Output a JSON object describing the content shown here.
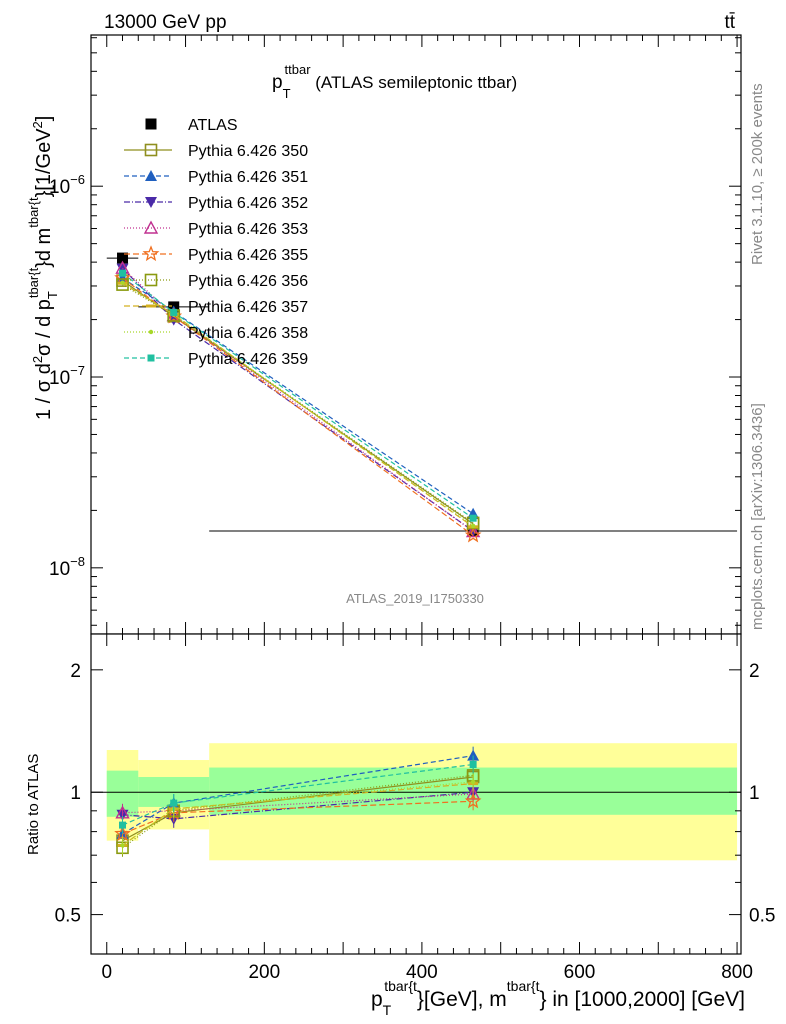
{
  "header": {
    "left": "13000 GeV pp",
    "right": "tt̄"
  },
  "side_labels": {
    "rivet": "Rivet 3.1.10, ≥ 200k events",
    "mcplots": "mcplots.cern.ch [arXiv:1306.3436]"
  },
  "watermark": "ATLAS_2019_I1750330",
  "chart_data": [
    {
      "type": "line",
      "title_main": "p",
      "title_sub": "T",
      "title_sup": "ttbar",
      "title_rest": " (ATLAS semileptonic ttbar)",
      "title": "p_T^ttbar (ATLAS semileptonic ttbar)",
      "ylabel": "1 / σ d²σ / d p_T^{tbar{t}} d m^{tbar{t}} [1/GeV²]",
      "yscale": "log",
      "ylim": [
        4.5e-09,
        6.2e-06
      ],
      "xlim": [
        -20,
        805
      ],
      "y_ticks": [
        {
          "value": 1e-06,
          "label": "10",
          "exp": "−6"
        },
        {
          "value": 1e-07,
          "label": "10",
          "exp": "−7"
        },
        {
          "value": 1e-08,
          "label": "10",
          "exp": "−8"
        }
      ],
      "x": [
        20,
        85,
        465
      ],
      "bin_edges": [
        0,
        40,
        130,
        800
      ],
      "series": [
        {
          "name": "ATLAS",
          "color": "#000000",
          "marker": "square-filled",
          "dash": "none",
          "values": [
            4.2e-07,
            2.33e-07,
            1.56e-08
          ]
        },
        {
          "name": "Pythia 6.426 350",
          "color": "#8f8f1f",
          "marker": "square-open",
          "dash": "solid",
          "values": [
            3.2e-07,
            2.08e-07,
            1.7e-08
          ]
        },
        {
          "name": "Pythia 6.426 351",
          "color": "#1f5fbf",
          "marker": "triangle-up",
          "dash": "5,3",
          "values": [
            3.3e-07,
            2.2e-07,
            1.92e-08
          ]
        },
        {
          "name": "Pythia 6.426 352",
          "color": "#4a2aa8",
          "marker": "triangle-down",
          "dash": "6,2,1,2",
          "values": [
            3.7e-07,
            2e-07,
            1.56e-08
          ]
        },
        {
          "name": "Pythia 6.426 353",
          "color": "#c03090",
          "marker": "triangle-open",
          "dash": "1,2",
          "values": [
            3.72e-07,
            2.1e-07,
            1.55e-08
          ]
        },
        {
          "name": "Pythia 6.426 355",
          "color": "#f07020",
          "marker": "star-open",
          "dash": "6,3",
          "values": [
            3.3e-07,
            2.08e-07,
            1.48e-08
          ]
        },
        {
          "name": "Pythia 6.426 356",
          "color": "#8a9a10",
          "marker": "square-open",
          "dash": "1,2",
          "values": [
            3.05e-07,
            2.1e-07,
            1.72e-08
          ]
        },
        {
          "name": "Pythia 6.426 357",
          "color": "#d4b020",
          "marker": "dash",
          "dash": "6,3",
          "values": [
            3.1e-07,
            2.13e-07,
            1.64e-08
          ]
        },
        {
          "name": "Pythia 6.426 358",
          "color": "#a8d82a",
          "marker": "dot",
          "dash": "1,2",
          "values": [
            3.12e-07,
            2.12e-07,
            1.66e-08
          ]
        },
        {
          "name": "Pythia 6.426 359",
          "color": "#20c0a0",
          "marker": "square-small",
          "dash": "5,3",
          "values": [
            3.5e-07,
            2.18e-07,
            1.82e-08
          ]
        }
      ]
    },
    {
      "type": "line",
      "ylabel": "Ratio to ATLAS",
      "xlabel_main": "p",
      "xlabel_sub": "T",
      "xlabel_sup": "tbar{t",
      "xlabel_mid": "}[GeV], m",
      "xlabel_sup2": "tbar{t",
      "xlabel_end": "} in [1000,2000] [GeV]",
      "xlabel": "p_T^{tbar{t}}[GeV], m^{tbar{t}} in [1000,2000] [GeV]",
      "yscale": "log",
      "ylim": [
        0.4,
        2.45
      ],
      "y_ticks": [
        0.5,
        1,
        2
      ],
      "y_tick_labels": [
        "0.5",
        "1",
        "2"
      ],
      "x_ticks": [
        0,
        200,
        400,
        600,
        800
      ],
      "x_tick_labels": [
        "0",
        "200",
        "400",
        "600",
        "800"
      ],
      "bands": [
        {
          "x0": 0,
          "x1": 40,
          "inner": [
            0.87,
            1.13
          ],
          "outer": [
            0.76,
            1.27
          ]
        },
        {
          "x0": 40,
          "x1": 130,
          "inner": [
            0.92,
            1.09
          ],
          "outer": [
            0.81,
            1.2
          ]
        },
        {
          "x0": 130,
          "x1": 800,
          "inner": [
            0.88,
            1.15
          ],
          "outer": [
            0.68,
            1.32
          ]
        }
      ],
      "band_colors": {
        "inner": "#99ff99",
        "outer": "#ffff99"
      },
      "ratios": [
        [
          0.76,
          0.89,
          1.09
        ],
        [
          0.79,
          0.94,
          1.23
        ],
        [
          0.88,
          0.86,
          1.0
        ],
        [
          0.89,
          0.9,
          0.99
        ],
        [
          0.79,
          0.89,
          0.95
        ],
        [
          0.73,
          0.9,
          1.1
        ],
        [
          0.74,
          0.91,
          1.05
        ],
        [
          0.74,
          0.91,
          1.06
        ],
        [
          0.83,
          0.94,
          1.17
        ]
      ]
    }
  ]
}
